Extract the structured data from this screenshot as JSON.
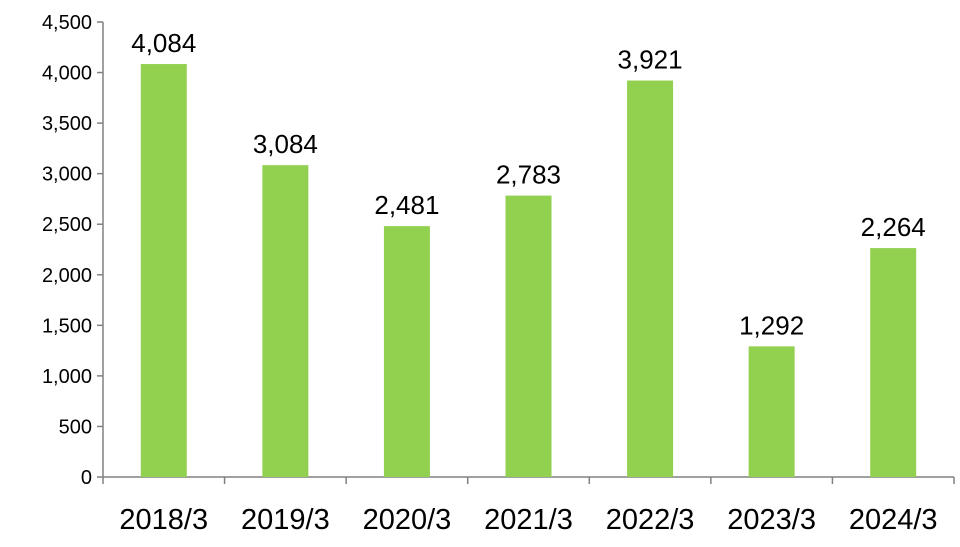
{
  "chart_data": {
    "type": "bar",
    "categories": [
      "2018/3",
      "2019/3",
      "2020/3",
      "2021/3",
      "2022/3",
      "2023/3",
      "2024/3"
    ],
    "values": [
      4084,
      3084,
      2481,
      2783,
      3921,
      1292,
      2264
    ],
    "data_labels": [
      "4,084",
      "3,084",
      "2,481",
      "2,783",
      "3,921",
      "1,292",
      "2,264"
    ],
    "y_ticks": [
      0,
      500,
      1000,
      1500,
      2000,
      2500,
      3000,
      3500,
      4000,
      4500
    ],
    "y_tick_labels": [
      "0",
      "500",
      "1,000",
      "1,500",
      "2,000",
      "2,500",
      "3,000",
      "3,500",
      "4,000",
      "4,500"
    ],
    "ylim": [
      0,
      4500
    ],
    "title": "",
    "xlabel": "",
    "ylabel": "",
    "grid": false,
    "legend": "none",
    "bar_color": "#92d050",
    "axis_color": "#808080"
  }
}
